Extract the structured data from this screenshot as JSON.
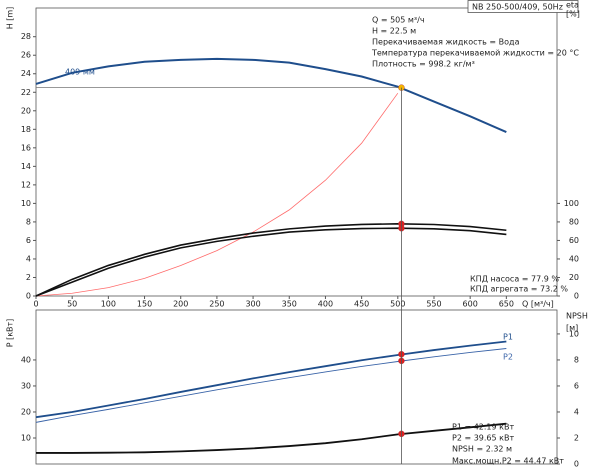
{
  "chart_data": [
    {
      "type": "line",
      "title": "NB 250-500/409, 50Hz",
      "y_label": "H [m]",
      "y2_label": [
        "eta",
        "[%]"
      ],
      "x_label": "Q [м³/ч]",
      "xlim": [
        0,
        720
      ],
      "xticks": [
        0,
        50,
        100,
        150,
        200,
        250,
        300,
        350,
        400,
        450,
        500,
        550,
        600,
        650
      ],
      "ylim": [
        0,
        31.1
      ],
      "yticks": [
        0,
        2,
        4,
        6,
        8,
        10,
        12,
        14,
        16,
        18,
        20,
        22,
        24,
        26,
        28
      ],
      "y2lim": [
        0,
        311
      ],
      "y2ticks": [
        0,
        20,
        40,
        60,
        80,
        100
      ],
      "x": [
        0,
        50,
        100,
        150,
        200,
        250,
        300,
        350,
        400,
        450,
        500,
        550,
        600,
        650
      ],
      "series": [
        {
          "name": "409 мм",
          "color": "#1f4e8c",
          "line_width": 2,
          "values": [
            22.9,
            24.1,
            24.8,
            25.3,
            25.5,
            25.6,
            25.5,
            25.2,
            24.5,
            23.7,
            22.6,
            21.0,
            19.4,
            17.7
          ]
        },
        {
          "color": "#ff6b6b",
          "line_width": 0.8,
          "values": [
            0,
            0.3,
            0.9,
            1.9,
            3.3,
            4.9,
            6.9,
            9.3,
            12.5,
            16.5,
            21.9,
            null,
            null,
            null
          ]
        },
        {
          "color": "#111111",
          "line_width": 1.6,
          "axis": "y2",
          "values": [
            0,
            18,
            33,
            45,
            55,
            62,
            68,
            72.5,
            75.5,
            77.3,
            77.9,
            77.2,
            75,
            71
          ]
        },
        {
          "color": "#111111",
          "line_width": 1.6,
          "axis": "y2",
          "values": [
            0,
            15,
            30,
            42,
            52,
            59,
            64.5,
            69,
            71.5,
            72.8,
            73.2,
            72.6,
            70.5,
            66.5
          ]
        }
      ],
      "markers": [
        {
          "x": 505,
          "y": 22.5,
          "color": "#f5b400"
        },
        {
          "x": 505,
          "y": 77.9,
          "axis": "y2",
          "color": "#e02020"
        },
        {
          "x": 505,
          "y": 73.2,
          "axis": "y2",
          "color": "#e02020"
        }
      ],
      "guide_lines": true,
      "annotations": [
        "Q = 505 м³/ч",
        "H = 22.5 м",
        "Перекачиваемая жидкость = Вода",
        "Температура перекачиваемой жидкости = 20 °C",
        "Плотность = 998.2 кг/м³",
        "КПД насоса = 77.9 %",
        "КПД агрегата = 73.2 %"
      ]
    },
    {
      "type": "line",
      "y_label": "P [кВт]",
      "y2_label": [
        "NPSH",
        "[м]"
      ],
      "xlim": [
        0,
        720
      ],
      "ylim": [
        0,
        59.2
      ],
      "yticks": [
        10,
        20,
        30,
        40
      ],
      "y2lim": [
        0,
        11.84
      ],
      "y2ticks": [
        0,
        2,
        4,
        6,
        8,
        10
      ],
      "x": [
        0,
        50,
        100,
        150,
        200,
        250,
        300,
        350,
        400,
        450,
        500,
        550,
        600,
        650
      ],
      "series": [
        {
          "name": "P1",
          "color": "#1f4e8c",
          "line_width": 1.8,
          "values": [
            18,
            20,
            22.5,
            25,
            27.7,
            30.3,
            32.9,
            35.3,
            37.6,
            39.9,
            41.9,
            43.8,
            45.5,
            47.1
          ]
        },
        {
          "name": "P2",
          "color": "#3a64a8",
          "line_width": 0.9,
          "values": [
            16,
            18.6,
            21,
            23.5,
            26,
            28.5,
            30.9,
            33.2,
            35.4,
            37.5,
            39.4,
            41.2,
            42.9,
            44.4
          ]
        },
        {
          "color": "#111111",
          "line_width": 1.8,
          "axis": "y2",
          "values": [
            0.85,
            0.85,
            0.87,
            0.9,
            0.97,
            1.07,
            1.2,
            1.38,
            1.6,
            1.9,
            2.28,
            2.55,
            2.82,
            3.1
          ]
        }
      ],
      "markers": [
        {
          "x": 505,
          "y": 42.19,
          "color": "#e02020"
        },
        {
          "x": 505,
          "y": 39.65,
          "color": "#e02020"
        },
        {
          "x": 505,
          "y": 2.32,
          "axis": "y2",
          "color": "#e02020"
        }
      ],
      "annotations": [
        "P1 = 42.19 кВт",
        "P2 = 39.65 кВт",
        "NPSH = 2.32 м",
        "Макс.мощн.P2 = 44.47 кВт"
      ]
    }
  ]
}
